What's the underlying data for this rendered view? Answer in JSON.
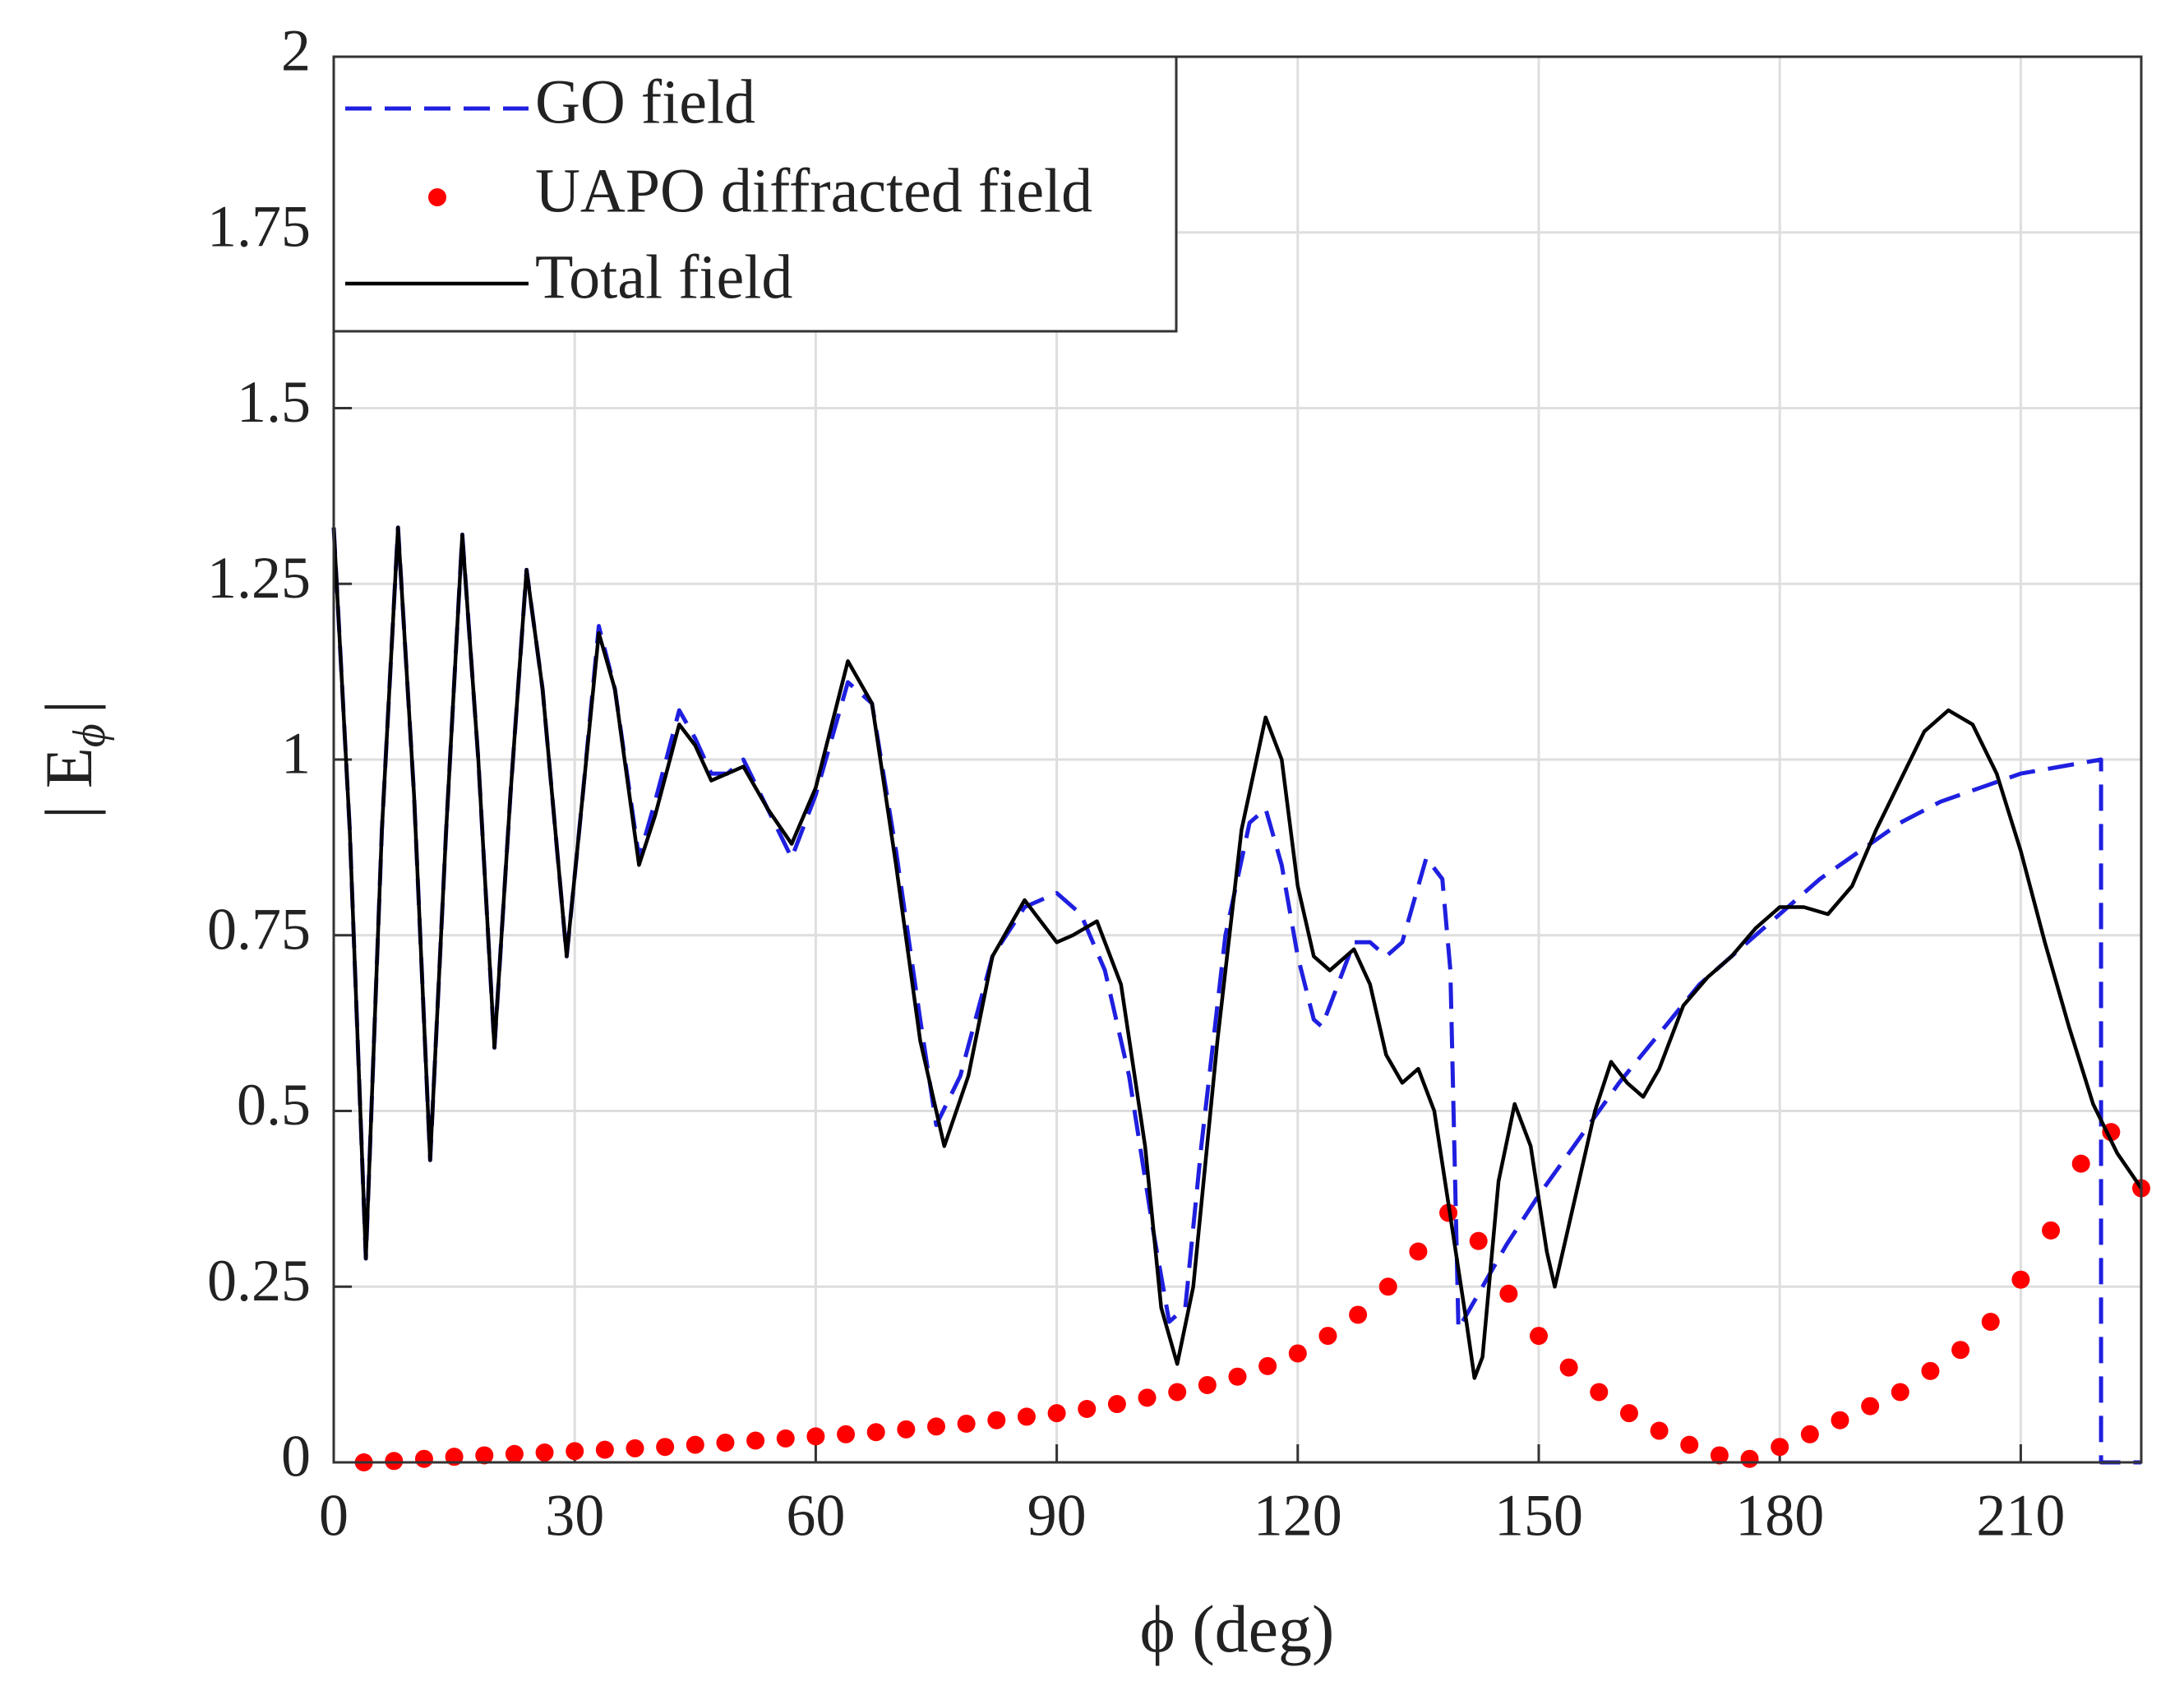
{
  "chart_data": {
    "type": "line",
    "x_label": "ϕ (deg)",
    "y_label": {
      "main": "| E",
      "sub": "ϕ",
      "end": "|"
    },
    "xlim": [
      0,
      225
    ],
    "xticks": [
      0,
      30,
      60,
      90,
      120,
      150,
      180,
      210
    ],
    "ylim": [
      0,
      2
    ],
    "yticks": [
      0,
      0.25,
      0.5,
      0.75,
      1,
      1.25,
      1.5,
      1.75,
      2
    ],
    "grid": true,
    "legend": "upper left",
    "series": [
      {
        "name": "GO field",
        "color": "#1f1fe0",
        "style": "dashed",
        "x": [
          0,
          2,
          4,
          6,
          8,
          10,
          12,
          14,
          16,
          18,
          20,
          22,
          24,
          26,
          29,
          31,
          33,
          35,
          38,
          40,
          43,
          45,
          47,
          49,
          51,
          54,
          57,
          60,
          64,
          67,
          70,
          73,
          75,
          78,
          82,
          86,
          90,
          93,
          96,
          99,
          102,
          104,
          106,
          108,
          111,
          114,
          116,
          118,
          120,
          122,
          123,
          125,
          127,
          129,
          131,
          133,
          135,
          136,
          138,
          139,
          140,
          143,
          146,
          150,
          155,
          160,
          165,
          170,
          175,
          180,
          185,
          190,
          195,
          200,
          205,
          210,
          215,
          220,
          220,
          225
        ],
        "values": [
          1.33,
          0.9,
          0.29,
          0.9,
          1.33,
          0.95,
          0.43,
          0.9,
          1.32,
          1.0,
          0.59,
          0.95,
          1.27,
          1.1,
          0.72,
          0.95,
          1.19,
          1.1,
          0.86,
          0.94,
          1.07,
          1.03,
          0.98,
          0.98,
          1.0,
          0.93,
          0.86,
          0.95,
          1.11,
          1.08,
          0.87,
          0.63,
          0.48,
          0.55,
          0.72,
          0.79,
          0.81,
          0.78,
          0.7,
          0.55,
          0.33,
          0.2,
          0.22,
          0.45,
          0.75,
          0.91,
          0.93,
          0.85,
          0.72,
          0.63,
          0.62,
          0.68,
          0.74,
          0.74,
          0.72,
          0.74,
          0.82,
          0.86,
          0.83,
          0.7,
          0.19,
          0.25,
          0.31,
          0.38,
          0.46,
          0.54,
          0.61,
          0.68,
          0.73,
          0.78,
          0.83,
          0.87,
          0.91,
          0.94,
          0.96,
          0.98,
          0.99,
          1.0,
          0,
          0
        ]
      },
      {
        "name": "UAPO diffracted field",
        "color": "#ff0000",
        "style": "dots",
        "x": [
          3.75,
          7.5,
          11.25,
          15,
          18.75,
          22.5,
          26.25,
          30,
          33.75,
          37.5,
          41.25,
          45,
          48.75,
          52.5,
          56.25,
          60,
          63.75,
          67.5,
          71.25,
          75,
          78.75,
          82.5,
          86.25,
          90,
          93.75,
          97.5,
          101.25,
          105,
          108.75,
          112.5,
          116.25,
          120,
          123.75,
          127.5,
          131.25,
          135,
          138.75,
          142.5,
          146.25,
          150,
          153.75,
          157.5,
          161.25,
          165,
          168.75,
          172.5,
          176.25,
          180,
          183.75,
          187.5,
          191.25,
          195,
          198.75,
          202.5,
          206.25,
          210,
          213.75,
          217.5,
          221.25,
          225
        ],
        "values": [
          0.0,
          0.002,
          0.005,
          0.008,
          0.01,
          0.012,
          0.014,
          0.016,
          0.018,
          0.02,
          0.022,
          0.025,
          0.028,
          0.031,
          0.034,
          0.037,
          0.04,
          0.043,
          0.047,
          0.051,
          0.055,
          0.06,
          0.065,
          0.07,
          0.076,
          0.083,
          0.092,
          0.1,
          0.11,
          0.122,
          0.137,
          0.155,
          0.18,
          0.21,
          0.25,
          0.3,
          0.355,
          0.315,
          0.24,
          0.18,
          0.135,
          0.1,
          0.07,
          0.045,
          0.025,
          0.01,
          0.005,
          0.022,
          0.04,
          0.06,
          0.08,
          0.1,
          0.13,
          0.16,
          0.2,
          0.26,
          0.33,
          0.425,
          0.47,
          0.39
        ]
      },
      {
        "name": "Total field",
        "color": "#000000",
        "style": "solid",
        "x": [
          0,
          2,
          4,
          6,
          8,
          10,
          12,
          14,
          16,
          18,
          20,
          22,
          24,
          26,
          29,
          31,
          33,
          35,
          38,
          40,
          43,
          45,
          47,
          49,
          51,
          54,
          57,
          60,
          64,
          67,
          70,
          73,
          76,
          79,
          82,
          86,
          88,
          90,
          92,
          95,
          98,
          101,
          103,
          105,
          107,
          110,
          113,
          116,
          118,
          120,
          122,
          124,
          127,
          129,
          131,
          133,
          135,
          137,
          139,
          141,
          142,
          143,
          145,
          147,
          149,
          151,
          152,
          154,
          157,
          159,
          161,
          163,
          165,
          168,
          171,
          174,
          177,
          180,
          183,
          186,
          189,
          192,
          195,
          198,
          201,
          204,
          207,
          210,
          213,
          216,
          219,
          222,
          225
        ],
        "values": [
          1.33,
          0.9,
          0.29,
          0.9,
          1.33,
          0.95,
          0.43,
          0.9,
          1.32,
          1.0,
          0.59,
          0.95,
          1.27,
          1.1,
          0.72,
          0.95,
          1.18,
          1.1,
          0.85,
          0.92,
          1.05,
          1.02,
          0.97,
          0.98,
          0.99,
          0.93,
          0.88,
          0.96,
          1.14,
          1.08,
          0.85,
          0.6,
          0.45,
          0.55,
          0.72,
          0.8,
          0.77,
          0.74,
          0.75,
          0.77,
          0.68,
          0.45,
          0.22,
          0.14,
          0.25,
          0.6,
          0.9,
          1.06,
          1.0,
          0.82,
          0.72,
          0.7,
          0.73,
          0.68,
          0.58,
          0.54,
          0.56,
          0.5,
          0.35,
          0.2,
          0.12,
          0.15,
          0.4,
          0.51,
          0.45,
          0.3,
          0.25,
          0.35,
          0.5,
          0.57,
          0.54,
          0.52,
          0.56,
          0.65,
          0.69,
          0.72,
          0.76,
          0.79,
          0.79,
          0.78,
          0.82,
          0.9,
          0.97,
          1.04,
          1.07,
          1.05,
          0.98,
          0.87,
          0.74,
          0.62,
          0.51,
          0.44,
          0.39
        ]
      }
    ]
  }
}
